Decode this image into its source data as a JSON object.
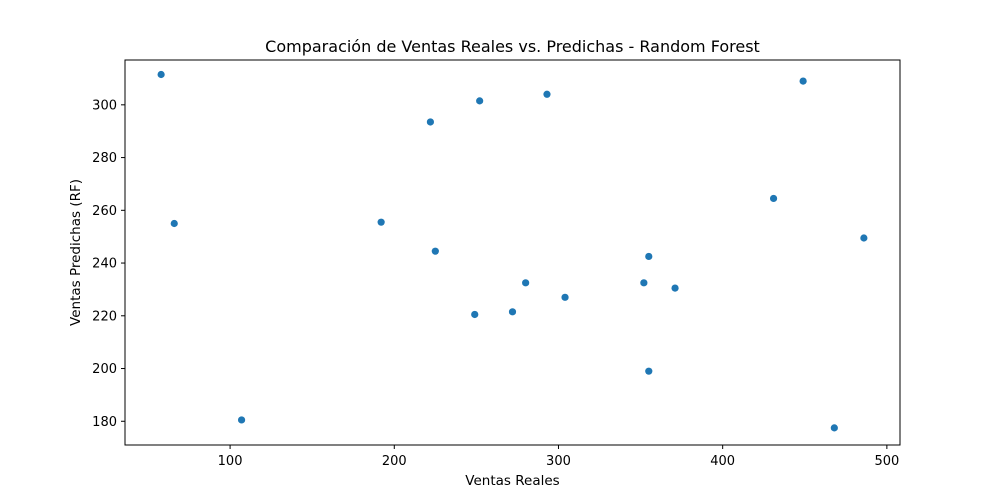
{
  "chart_data": {
    "type": "scatter",
    "title": "Comparación de Ventas Reales vs. Predichas - Random Forest",
    "xlabel": "Ventas Reales",
    "ylabel": "Ventas Predichas (RF)",
    "xlim": [
      36,
      508
    ],
    "ylim": [
      171,
      317
    ],
    "xticks": [
      100,
      200,
      300,
      400,
      500
    ],
    "yticks": [
      180,
      200,
      220,
      240,
      260,
      280,
      300
    ],
    "grid": false,
    "marker_color": "#1f77b4",
    "series": [
      {
        "x": [
          58,
          66,
          107,
          192,
          222,
          225,
          249,
          252,
          272,
          280,
          293,
          304,
          352,
          355,
          355,
          371,
          431,
          449,
          468,
          486
        ],
        "y": [
          311.5,
          255,
          180.5,
          255.5,
          293.5,
          244.5,
          220.5,
          301.5,
          221.5,
          232.5,
          304,
          227,
          232.5,
          242.5,
          199,
          230.5,
          264.5,
          309,
          177.5,
          249.5
        ]
      }
    ]
  }
}
